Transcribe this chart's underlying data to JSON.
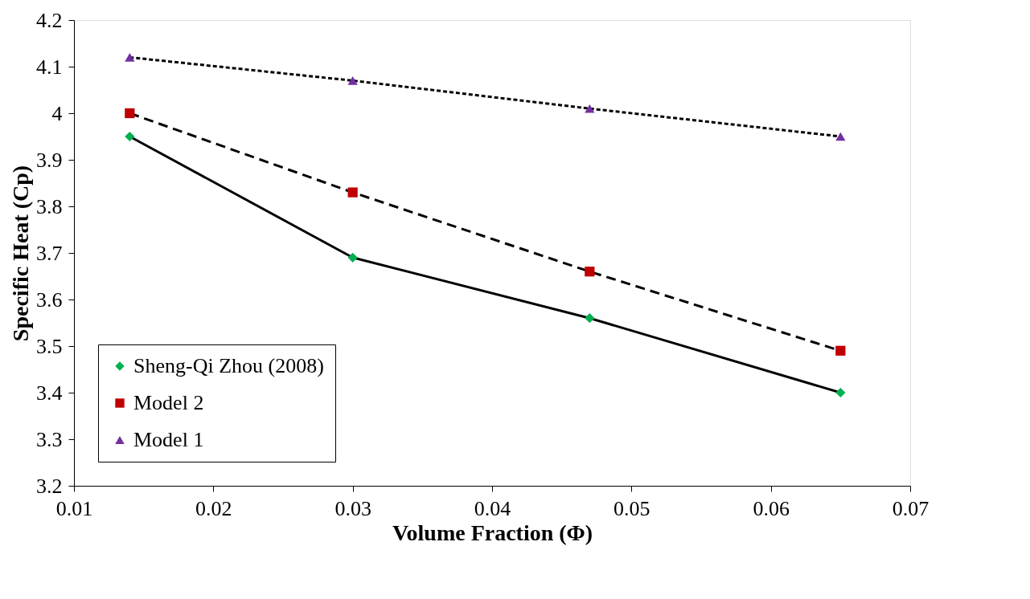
{
  "chart_data": {
    "type": "line",
    "xlabel": "Volume Fraction (Φ)",
    "ylabel": "Specific Heat (Cp)",
    "x": [
      0.014,
      0.03,
      0.047,
      0.065
    ],
    "xlim": [
      0.01,
      0.07
    ],
    "xticks": [
      0.01,
      0.02,
      0.03,
      0.04,
      0.05,
      0.06,
      0.07
    ],
    "ylim": [
      3.2,
      4.2
    ],
    "yticks": [
      3.2,
      3.3,
      3.4,
      3.5,
      3.6,
      3.7,
      3.8,
      3.9,
      4,
      4.1,
      4.2
    ],
    "grid": false,
    "legend": "bottom left",
    "series": [
      {
        "name": "Sheng-Qi Zhou (2008)",
        "color": "#00b050",
        "values": [
          3.95,
          3.69,
          3.56,
          3.4
        ],
        "marker": "diamond",
        "line_style": "solid"
      },
      {
        "name": "Model 2",
        "color": "#c00000",
        "values": [
          4.0,
          3.83,
          3.66,
          3.49
        ],
        "marker": "square",
        "line_style": "dashed"
      },
      {
        "name": "Model 1",
        "color": "#7030a0",
        "values": [
          4.12,
          4.07,
          4.01,
          3.95
        ],
        "marker": "triangle",
        "line_style": "dotted"
      }
    ]
  }
}
